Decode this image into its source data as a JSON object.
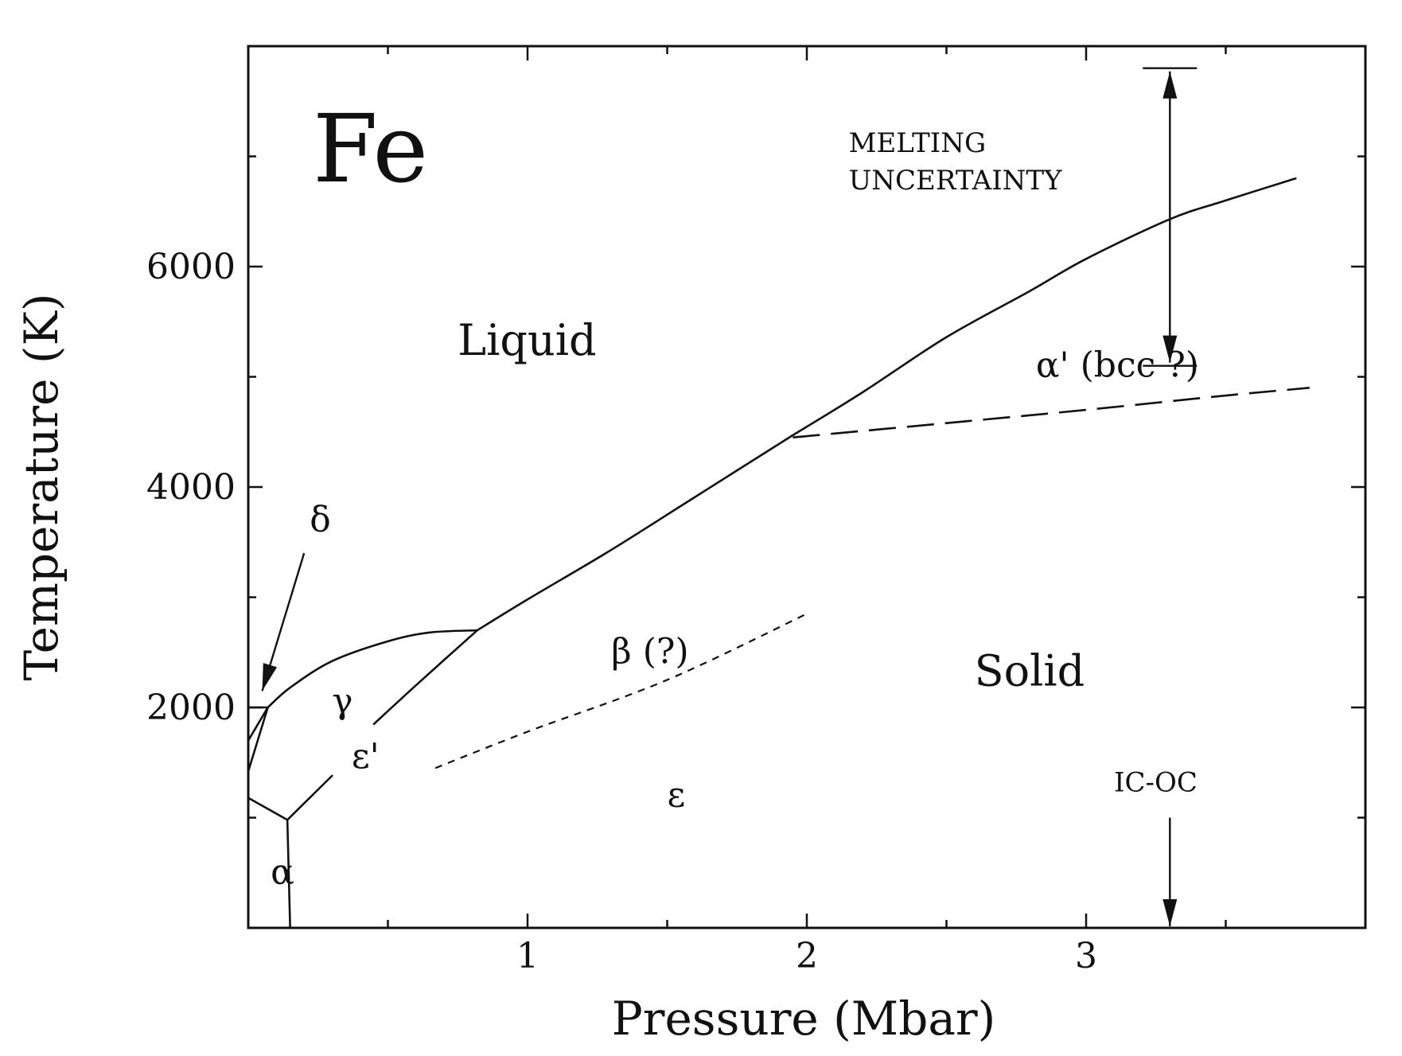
{
  "chart_data": {
    "type": "line",
    "title": "Fe",
    "xlabel": "Pressure (Mbar)",
    "ylabel": "Temperature (K)",
    "xlim": [
      0,
      4
    ],
    "ylim": [
      0,
      8000
    ],
    "x_ticks": [
      1,
      2,
      3
    ],
    "y_ticks": [
      2000,
      4000,
      6000
    ],
    "x_tick_labels": [
      "1",
      "2",
      "3"
    ],
    "y_tick_labels": [
      "2000",
      "4000",
      "6000"
    ],
    "grid": false,
    "series": [
      {
        "style": "solid",
        "points": [
          [
            1.95,
            4470
          ],
          [
            2.2,
            4860
          ],
          [
            2.5,
            5360
          ],
          [
            2.8,
            5780
          ],
          [
            3.0,
            6070
          ],
          [
            3.3,
            6430
          ],
          [
            3.5,
            6600
          ],
          [
            3.75,
            6800
          ]
        ]
      },
      {
        "style": "solid",
        "points": [
          [
            0.82,
            2700
          ],
          [
            1.0,
            2980
          ],
          [
            1.3,
            3430
          ],
          [
            1.6,
            3910
          ],
          [
            1.95,
            4470
          ]
        ]
      },
      {
        "style": "solid",
        "points": [
          [
            0.07,
            2000
          ],
          [
            0.15,
            2180
          ],
          [
            0.3,
            2420
          ],
          [
            0.5,
            2600
          ],
          [
            0.65,
            2680
          ],
          [
            0.82,
            2700
          ]
        ]
      },
      {
        "style": "solid",
        "points": [
          [
            0.45,
            1850
          ],
          [
            0.6,
            2200
          ],
          [
            0.82,
            2700
          ]
        ]
      },
      {
        "style": "solid",
        "points": [
          [
            0.14,
            980
          ],
          [
            0.3,
            1380
          ]
        ]
      },
      {
        "style": "solid",
        "points": [
          [
            0.0,
            1180
          ],
          [
            0.14,
            980
          ]
        ]
      },
      {
        "style": "solid",
        "points": [
          [
            0.14,
            980
          ],
          [
            0.15,
            0
          ]
        ]
      },
      {
        "style": "solid",
        "points": [
          [
            0.0,
            1420
          ],
          [
            0.07,
            2000
          ]
        ]
      },
      {
        "style": "solid",
        "points": [
          [
            0.0,
            1700
          ],
          [
            0.07,
            2000
          ]
        ]
      },
      {
        "style": "solid",
        "points": [
          [
            0.0,
            2000
          ],
          [
            0.07,
            2000
          ]
        ]
      },
      {
        "style": "dashed",
        "points": [
          [
            1.95,
            4450
          ],
          [
            2.5,
            4580
          ],
          [
            3.0,
            4700
          ],
          [
            3.5,
            4830
          ],
          [
            3.8,
            4900
          ]
        ]
      },
      {
        "style": "dotted",
        "points": [
          [
            0.67,
            1450
          ],
          [
            1.0,
            1780
          ],
          [
            1.5,
            2250
          ],
          [
            2.0,
            2850
          ]
        ]
      }
    ],
    "annotations": [
      {
        "text": "Liquid",
        "x": 0.75,
        "y": 5200,
        "kind": "region"
      },
      {
        "text": "Solid",
        "x": 2.6,
        "y": 2200,
        "kind": "region"
      },
      {
        "text": "α' (bcc ?)",
        "x": 2.82,
        "y": 5000,
        "kind": "phase"
      },
      {
        "text": "β (?)",
        "x": 1.3,
        "y": 2400,
        "kind": "phase"
      },
      {
        "text": "γ",
        "x": 0.3,
        "y": 1950,
        "kind": "phase"
      },
      {
        "text": "ε'",
        "x": 0.37,
        "y": 1450,
        "kind": "phase"
      },
      {
        "text": "ε",
        "x": 1.5,
        "y": 1100,
        "kind": "phase"
      },
      {
        "text": "α",
        "x": 0.08,
        "y": 400,
        "kind": "phase"
      },
      {
        "text": "δ",
        "x": 0.22,
        "y": 3600,
        "kind": "phase"
      },
      {
        "text": "MELTING",
        "x": 2.15,
        "y": 7040,
        "kind": "note"
      },
      {
        "text": "UNCERTAINTY",
        "x": 2.15,
        "y": 6700,
        "kind": "note"
      },
      {
        "text": "IC-OC",
        "x": 3.1,
        "y": 1240,
        "kind": "note"
      }
    ],
    "markers": [
      {
        "kind": "range-bar",
        "x": 3.3,
        "y_low": 5100,
        "y_high": 7800
      },
      {
        "kind": "arrow-down",
        "x": 3.3,
        "y_from": 1000,
        "y_to": 0
      },
      {
        "kind": "arrow-to",
        "from": [
          0.2,
          3400
        ],
        "to": [
          0.05,
          2150
        ]
      }
    ]
  }
}
